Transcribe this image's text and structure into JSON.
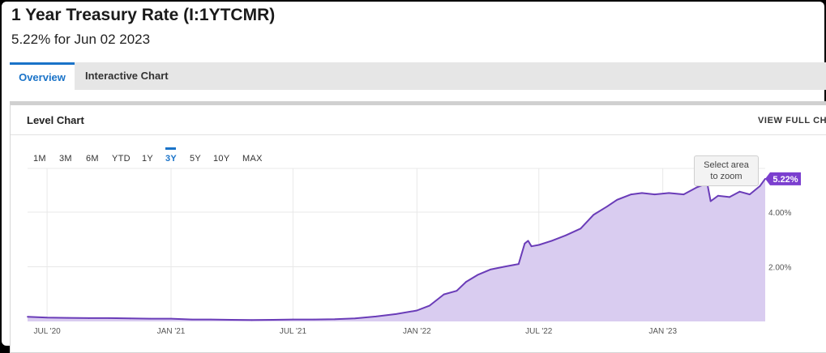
{
  "header": {
    "title": "1 Year Treasury Rate (I:1YTCMR)",
    "subtitle": "5.22% for Jun 02 2023"
  },
  "tabs": [
    {
      "label": "Overview",
      "active": true
    },
    {
      "label": "Interactive Chart",
      "active": false
    }
  ],
  "panel": {
    "title": "Level Chart",
    "view_full_label": "VIEW FULL CHA"
  },
  "range_buttons": [
    "1M",
    "3M",
    "6M",
    "YTD",
    "1Y",
    "3Y",
    "5Y",
    "10Y",
    "MAX"
  ],
  "active_range": "3Y",
  "tooltip": {
    "line1": "Select area",
    "line2": "to zoom"
  },
  "colors": {
    "accent": "#1a73c8",
    "series_line": "#6a3cb8",
    "series_fill": "#d9ccf0",
    "label_bg": "#7b3fcf"
  },
  "chart_data": {
    "type": "area",
    "x_ticks": [
      "JUL '20",
      "JAN '21",
      "JUL '21",
      "JAN '22",
      "JUL '22",
      "JAN '23"
    ],
    "y_ticks": [
      "2.00%",
      "4.00%"
    ],
    "y_tick_values": [
      2,
      4
    ],
    "ylim": [
      0,
      5.6
    ],
    "xlim": [
      "2020-06-02",
      "2023-06-02"
    ],
    "last_value_label": "5.22%",
    "grid": true,
    "series": [
      {
        "x": [
          "2020-06-02",
          "2020-07-01",
          "2020-08-01",
          "2020-09-01",
          "2020-10-01",
          "2020-11-01",
          "2020-12-01",
          "2021-01-01",
          "2021-02-01",
          "2021-03-01",
          "2021-04-01",
          "2021-05-01",
          "2021-06-01",
          "2021-07-01",
          "2021-08-01",
          "2021-09-01",
          "2021-10-01",
          "2021-11-01",
          "2021-12-01",
          "2022-01-01",
          "2022-01-20",
          "2022-02-10",
          "2022-03-01",
          "2022-03-15",
          "2022-04-01",
          "2022-04-20",
          "2022-05-10",
          "2022-06-01",
          "2022-06-10",
          "2022-06-15",
          "2022-06-20",
          "2022-07-01",
          "2022-07-20",
          "2022-08-10",
          "2022-09-01",
          "2022-09-20",
          "2022-10-10",
          "2022-10-25",
          "2022-11-15",
          "2022-12-01",
          "2022-12-20",
          "2023-01-10",
          "2023-02-01",
          "2023-02-20",
          "2023-03-08",
          "2023-03-13",
          "2023-03-24",
          "2023-04-10",
          "2023-04-25",
          "2023-05-10",
          "2023-05-25",
          "2023-06-02"
        ],
        "y": [
          0.17,
          0.14,
          0.13,
          0.12,
          0.12,
          0.11,
          0.1,
          0.1,
          0.07,
          0.07,
          0.06,
          0.05,
          0.06,
          0.07,
          0.07,
          0.08,
          0.11,
          0.18,
          0.27,
          0.4,
          0.58,
          0.99,
          1.12,
          1.45,
          1.7,
          1.9,
          2.0,
          2.1,
          2.85,
          2.95,
          2.75,
          2.8,
          2.95,
          3.15,
          3.4,
          3.9,
          4.2,
          4.45,
          4.65,
          4.7,
          4.65,
          4.7,
          4.65,
          4.9,
          5.05,
          4.4,
          4.6,
          4.55,
          4.75,
          4.65,
          4.95,
          5.22
        ]
      }
    ]
  }
}
